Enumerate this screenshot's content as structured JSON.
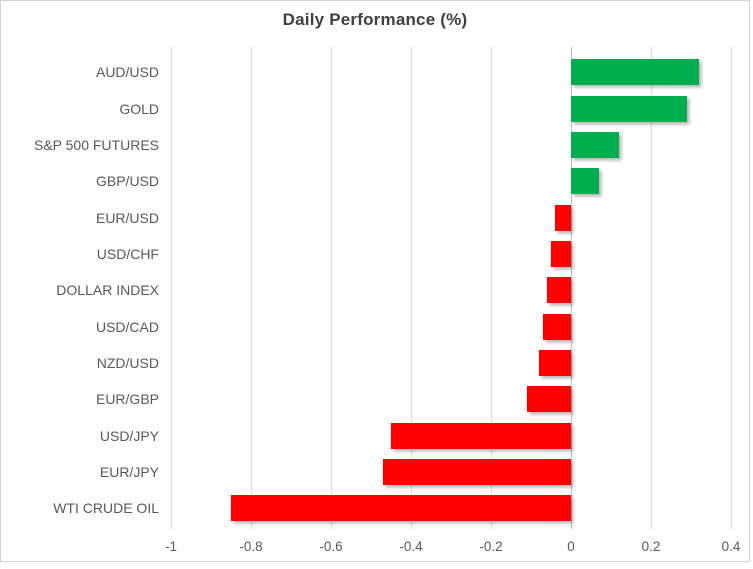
{
  "chart_data": {
    "type": "bar",
    "orientation": "horizontal",
    "title": "Daily Performance (%)",
    "categories": [
      "AUD/USD",
      "GOLD",
      "S&P 500 FUTURES",
      "GBP/USD",
      "EUR/USD",
      "USD/CHF",
      "DOLLAR INDEX",
      "USD/CAD",
      "NZD/USD",
      "EUR/GBP",
      "USD/JPY",
      "EUR/JPY",
      "WTI CRUDE OIL"
    ],
    "values": [
      0.32,
      0.29,
      0.12,
      0.07,
      -0.04,
      -0.05,
      -0.06,
      -0.07,
      -0.08,
      -0.11,
      -0.45,
      -0.47,
      -0.85
    ],
    "xlabel": "",
    "ylabel": "",
    "xlim": [
      -1,
      0.4
    ],
    "xticks": [
      -1,
      -0.8,
      -0.6,
      -0.4,
      -0.2,
      0,
      0.2,
      0.4
    ],
    "xtick_labels": [
      "-1",
      "-0.8",
      "-0.6",
      "-0.4",
      "-0.2",
      "0",
      "0.2",
      "0.4"
    ],
    "grid": true,
    "legend": false,
    "positive_color": "#00AE4D",
    "negative_color": "#FF0000",
    "gridline_color": "#d9d9d9",
    "zero_axis_color": "#bfbfbf",
    "label_color": "#595959",
    "title_color": "#3f3f3f",
    "frame_border_color": "#d2d2d2"
  }
}
